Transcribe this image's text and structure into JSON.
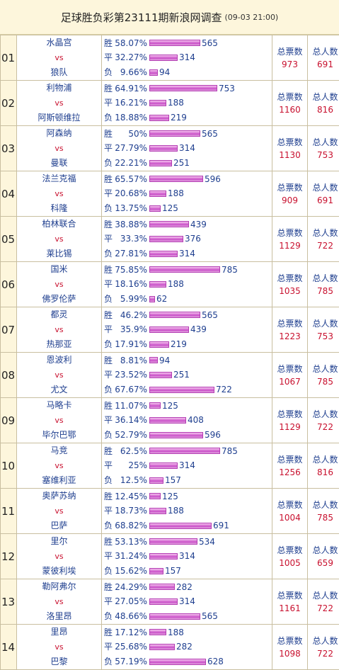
{
  "header": {
    "title": "足球胜负彩第23111期新浪网调查",
    "timestamp": "(09-03 21:00)"
  },
  "labels": {
    "win": "胜",
    "draw": "平",
    "lose": "负",
    "vs": "vs",
    "total_votes": "总票数",
    "total_people": "总人数"
  },
  "matches": [
    {
      "no": "01",
      "home": "水晶宫",
      "away": "狼队",
      "win": {
        "pct": "58.07%",
        "n": 565
      },
      "draw": {
        "pct": "32.27%",
        "n": 314
      },
      "lose": {
        "pct": "9.66%",
        "n": 94
      },
      "votes": "973",
      "people": "691"
    },
    {
      "no": "02",
      "home": "利物浦",
      "away": "阿斯顿维拉",
      "win": {
        "pct": "64.91%",
        "n": 753
      },
      "draw": {
        "pct": "16.21%",
        "n": 188
      },
      "lose": {
        "pct": "18.88%",
        "n": 219
      },
      "votes": "1160",
      "people": "816"
    },
    {
      "no": "03",
      "home": "阿森纳",
      "away": "曼联",
      "win": {
        "pct": "50%",
        "n": 565
      },
      "draw": {
        "pct": "27.79%",
        "n": 314
      },
      "lose": {
        "pct": "22.21%",
        "n": 251
      },
      "votes": "1130",
      "people": "753"
    },
    {
      "no": "04",
      "home": "法兰克福",
      "away": "科隆",
      "win": {
        "pct": "65.57%",
        "n": 596
      },
      "draw": {
        "pct": "20.68%",
        "n": 188
      },
      "lose": {
        "pct": "13.75%",
        "n": 125
      },
      "votes": "909",
      "people": "691"
    },
    {
      "no": "05",
      "home": "柏林联合",
      "away": "莱比锡",
      "win": {
        "pct": "38.88%",
        "n": 439
      },
      "draw": {
        "pct": "33.3%",
        "n": 376
      },
      "lose": {
        "pct": "27.81%",
        "n": 314
      },
      "votes": "1129",
      "people": "722"
    },
    {
      "no": "06",
      "home": "国米",
      "away": "佛罗伦萨",
      "win": {
        "pct": "75.85%",
        "n": 785
      },
      "draw": {
        "pct": "18.16%",
        "n": 188
      },
      "lose": {
        "pct": "5.99%",
        "n": 62
      },
      "votes": "1035",
      "people": "785"
    },
    {
      "no": "07",
      "home": "都灵",
      "away": "热那亚",
      "win": {
        "pct": "46.2%",
        "n": 565
      },
      "draw": {
        "pct": "35.9%",
        "n": 439
      },
      "lose": {
        "pct": "17.91%",
        "n": 219
      },
      "votes": "1223",
      "people": "753"
    },
    {
      "no": "08",
      "home": "恩波利",
      "away": "尤文",
      "win": {
        "pct": "8.81%",
        "n": 94
      },
      "draw": {
        "pct": "23.52%",
        "n": 251
      },
      "lose": {
        "pct": "67.67%",
        "n": 722
      },
      "votes": "1067",
      "people": "785"
    },
    {
      "no": "09",
      "home": "马略卡",
      "away": "毕尔巴鄂",
      "win": {
        "pct": "11.07%",
        "n": 125
      },
      "draw": {
        "pct": "36.14%",
        "n": 408
      },
      "lose": {
        "pct": "52.79%",
        "n": 596
      },
      "votes": "1129",
      "people": "722"
    },
    {
      "no": "10",
      "home": "马竞",
      "away": "塞维利亚",
      "win": {
        "pct": "62.5%",
        "n": 785
      },
      "draw": {
        "pct": "25%",
        "n": 314
      },
      "lose": {
        "pct": "12.5%",
        "n": 157
      },
      "votes": "1256",
      "people": "816"
    },
    {
      "no": "11",
      "home": "奥萨苏纳",
      "away": "巴萨",
      "win": {
        "pct": "12.45%",
        "n": 125
      },
      "draw": {
        "pct": "18.73%",
        "n": 188
      },
      "lose": {
        "pct": "68.82%",
        "n": 691
      },
      "votes": "1004",
      "people": "785"
    },
    {
      "no": "12",
      "home": "里尔",
      "away": "蒙彼利埃",
      "win": {
        "pct": "53.13%",
        "n": 534
      },
      "draw": {
        "pct": "31.24%",
        "n": 314
      },
      "lose": {
        "pct": "15.62%",
        "n": 157
      },
      "votes": "1005",
      "people": "659"
    },
    {
      "no": "13",
      "home": "勒阿弗尔",
      "away": "洛里昂",
      "win": {
        "pct": "24.29%",
        "n": 282
      },
      "draw": {
        "pct": "27.05%",
        "n": 314
      },
      "lose": {
        "pct": "48.66%",
        "n": 565
      },
      "votes": "1161",
      "people": "722"
    },
    {
      "no": "14",
      "home": "里昂",
      "away": "巴黎",
      "win": {
        "pct": "17.12%",
        "n": 188
      },
      "draw": {
        "pct": "25.68%",
        "n": 282
      },
      "lose": {
        "pct": "57.19%",
        "n": 628
      },
      "votes": "1098",
      "people": "722"
    }
  ]
}
